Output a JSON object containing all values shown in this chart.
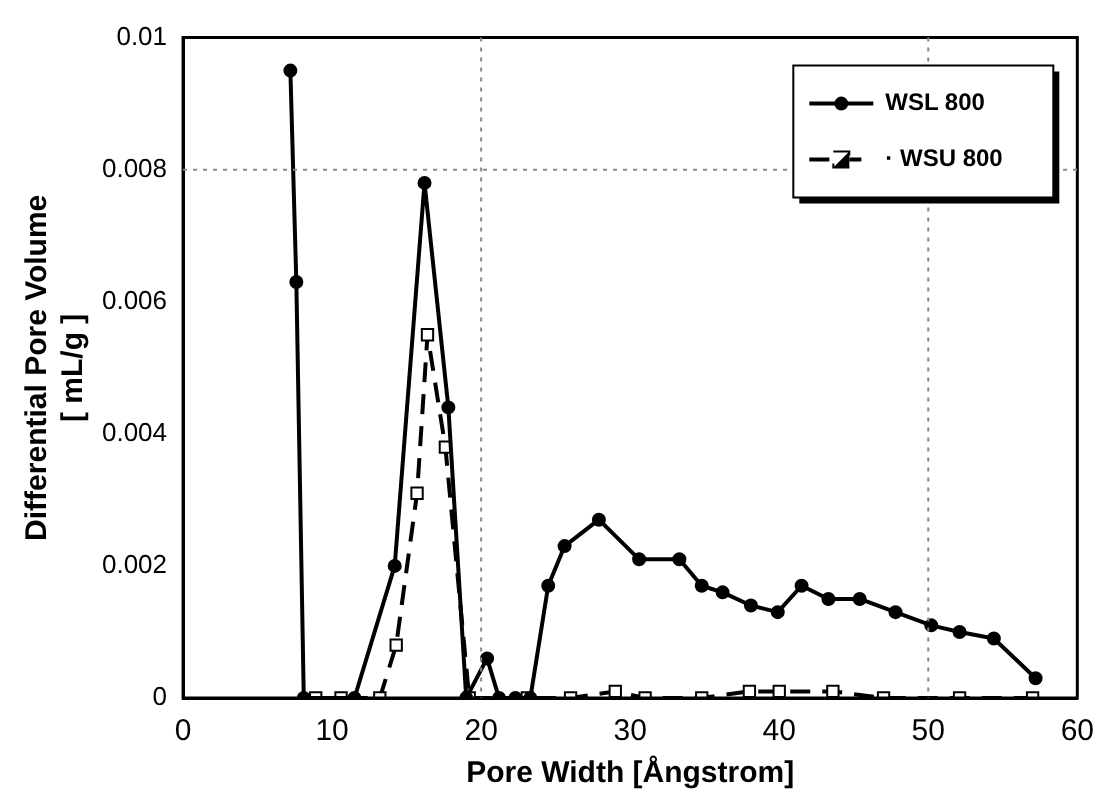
{
  "chart_data": {
    "type": "line",
    "xlabel": "Pore Width [Ångstrom]",
    "ylabel": "Differential Pore Volume\n[ mL/g ]",
    "xlim": [
      0,
      60
    ],
    "xticks": [
      0,
      10,
      20,
      30,
      40,
      50,
      60
    ],
    "ylim": [
      0,
      0.01
    ],
    "yticks": [
      0,
      0.002,
      0.004,
      0.006,
      0.008,
      0.01
    ],
    "grid": false,
    "legend": "top right",
    "ref_lines": [
      {
        "axis": "x",
        "value": 20,
        "line_style": "dotted",
        "color": "#888888"
      },
      {
        "axis": "x",
        "value": 50,
        "line_style": "dotted",
        "color": "#888888"
      },
      {
        "axis": "y",
        "value": 0.008,
        "line_style": "dotted",
        "color": "#888888"
      }
    ],
    "series": [
      {
        "name": "WSL 800",
        "color": "#000000",
        "line_style": "solid",
        "marker": "circle",
        "x": [
          7.2,
          7.6,
          8.1,
          11.5,
          14.2,
          16.2,
          17.8,
          19.0,
          20.4,
          21.2,
          22.3,
          23.3,
          24.5,
          25.6,
          27.9,
          30.6,
          33.3,
          34.8,
          36.2,
          38.1,
          39.9,
          41.5,
          43.3,
          45.4,
          47.8,
          50.2,
          52.1,
          54.4,
          57.2
        ],
        "values": [
          0.0095,
          0.0063,
          0,
          0,
          0.002,
          0.0078,
          0.0044,
          0,
          0.0006,
          0,
          0,
          0,
          0.0017,
          0.0023,
          0.0027,
          0.0021,
          0.0021,
          0.0017,
          0.0016,
          0.0014,
          0.0013,
          0.0017,
          0.0015,
          0.0015,
          0.0013,
          0.0011,
          0.001,
          0.0009,
          0.0003
        ]
      },
      {
        "name": "· WSU 800",
        "color": "#000000",
        "line_style": "dashed",
        "marker": "square",
        "x": [
          8.9,
          10.6,
          13.2,
          14.3,
          15.7,
          16.4,
          17.6,
          19.2,
          23.1,
          26,
          29,
          31,
          34.8,
          38,
          40,
          43.6,
          47,
          52.1,
          57
        ],
        "values": [
          0,
          0,
          0,
          0.0008,
          0.0031,
          0.0055,
          0.0038,
          0,
          0,
          0,
          0.0001,
          0,
          0,
          0.0001,
          0.0001,
          0.0001,
          0,
          0,
          0
        ]
      }
    ]
  }
}
